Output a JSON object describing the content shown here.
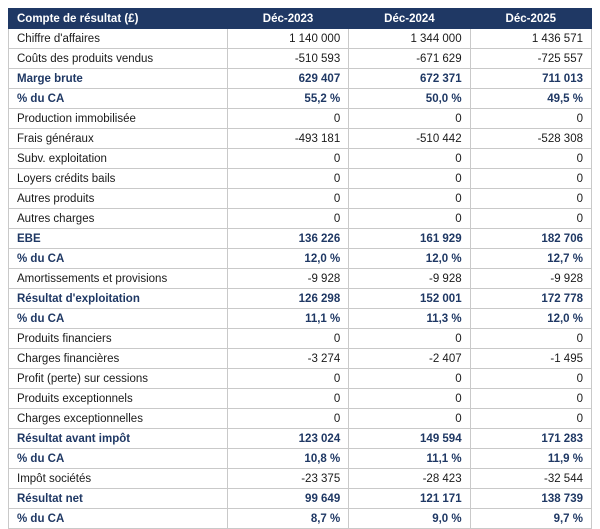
{
  "table": {
    "header": {
      "label": "Compte de résultat (£)",
      "columns": [
        "Déc-2023",
        "Déc-2024",
        "Déc-2025"
      ]
    },
    "rows": [
      {
        "label": "Chiffre d'affaires",
        "values": [
          "1 140 000",
          "1 344 000",
          "1 436 571"
        ],
        "emphasis": false
      },
      {
        "label": "Coûts des produits vendus",
        "values": [
          "-510 593",
          "-671 629",
          "-725 557"
        ],
        "emphasis": false
      },
      {
        "label": "Marge brute",
        "values": [
          "629 407",
          "672 371",
          "711 013"
        ],
        "emphasis": true
      },
      {
        "label": "% du CA",
        "values": [
          "55,2 %",
          "50,0 %",
          "49,5 %"
        ],
        "emphasis": true
      },
      {
        "label": "Production immobilisée",
        "values": [
          "0",
          "0",
          "0"
        ],
        "emphasis": false
      },
      {
        "label": "Frais généraux",
        "values": [
          "-493 181",
          "-510 442",
          "-528 308"
        ],
        "emphasis": false
      },
      {
        "label": "Subv. exploitation",
        "values": [
          "0",
          "0",
          "0"
        ],
        "emphasis": false
      },
      {
        "label": "Loyers crédits bails",
        "values": [
          "0",
          "0",
          "0"
        ],
        "emphasis": false
      },
      {
        "label": "Autres produits",
        "values": [
          "0",
          "0",
          "0"
        ],
        "emphasis": false
      },
      {
        "label": "Autres charges",
        "values": [
          "0",
          "0",
          "0"
        ],
        "emphasis": false
      },
      {
        "label": "EBE",
        "values": [
          "136 226",
          "161 929",
          "182 706"
        ],
        "emphasis": true
      },
      {
        "label": "% du CA",
        "values": [
          "12,0 %",
          "12,0 %",
          "12,7 %"
        ],
        "emphasis": true
      },
      {
        "label": "Amortissements et provisions",
        "values": [
          "-9 928",
          "-9 928",
          "-9 928"
        ],
        "emphasis": false
      },
      {
        "label": "Résultat d'exploitation",
        "values": [
          "126 298",
          "152 001",
          "172 778"
        ],
        "emphasis": true
      },
      {
        "label": "% du CA",
        "values": [
          "11,1 %",
          "11,3 %",
          "12,0 %"
        ],
        "emphasis": true
      },
      {
        "label": "Produits financiers",
        "values": [
          "0",
          "0",
          "0"
        ],
        "emphasis": false
      },
      {
        "label": "Charges financières",
        "values": [
          "-3 274",
          "-2 407",
          "-1 495"
        ],
        "emphasis": false
      },
      {
        "label": "Profit (perte) sur cessions",
        "values": [
          "0",
          "0",
          "0"
        ],
        "emphasis": false
      },
      {
        "label": "Produits exceptionnels",
        "values": [
          "0",
          "0",
          "0"
        ],
        "emphasis": false
      },
      {
        "label": "Charges exceptionnelles",
        "values": [
          "0",
          "0",
          "0"
        ],
        "emphasis": false
      },
      {
        "label": "Résultat avant impôt",
        "values": [
          "123 024",
          "149 594",
          "171 283"
        ],
        "emphasis": true
      },
      {
        "label": "% du CA",
        "values": [
          "10,8 %",
          "11,1 %",
          "11,9 %"
        ],
        "emphasis": true
      },
      {
        "label": "Impôt sociétés",
        "values": [
          "-23 375",
          "-28 423",
          "-32 544"
        ],
        "emphasis": false
      },
      {
        "label": "Résultat net",
        "values": [
          "99 649",
          "121 171",
          "138 739"
        ],
        "emphasis": true
      },
      {
        "label": "% du CA",
        "values": [
          "8,7 %",
          "9,0 %",
          "9,7 %"
        ],
        "emphasis": true
      }
    ]
  }
}
